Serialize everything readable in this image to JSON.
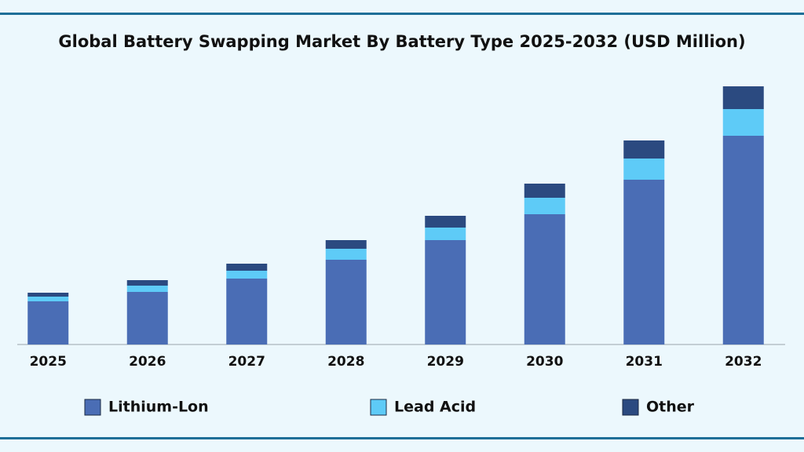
{
  "chart_data": {
    "type": "stacked-bar",
    "title": "Global Battery Swapping Market By Battery Type 2025-2032 (USD Million)",
    "categories": [
      "2025",
      "2026",
      "2027",
      "2028",
      "2029",
      "2030",
      "2031",
      "2032"
    ],
    "series": [
      {
        "name": "Lithium-Lon",
        "color": "#4a6db5",
        "values": [
          55,
          67,
          84,
          108,
          133,
          166,
          210,
          266
        ]
      },
      {
        "name": "Lead Acid",
        "color": "#5ecbf7",
        "values": [
          6,
          8,
          10,
          14,
          16,
          21,
          27,
          34
        ]
      },
      {
        "name": "Other",
        "color": "#2b4a80",
        "values": [
          5,
          7,
          9,
          11,
          15,
          18,
          23,
          29
        ]
      }
    ]
  }
}
